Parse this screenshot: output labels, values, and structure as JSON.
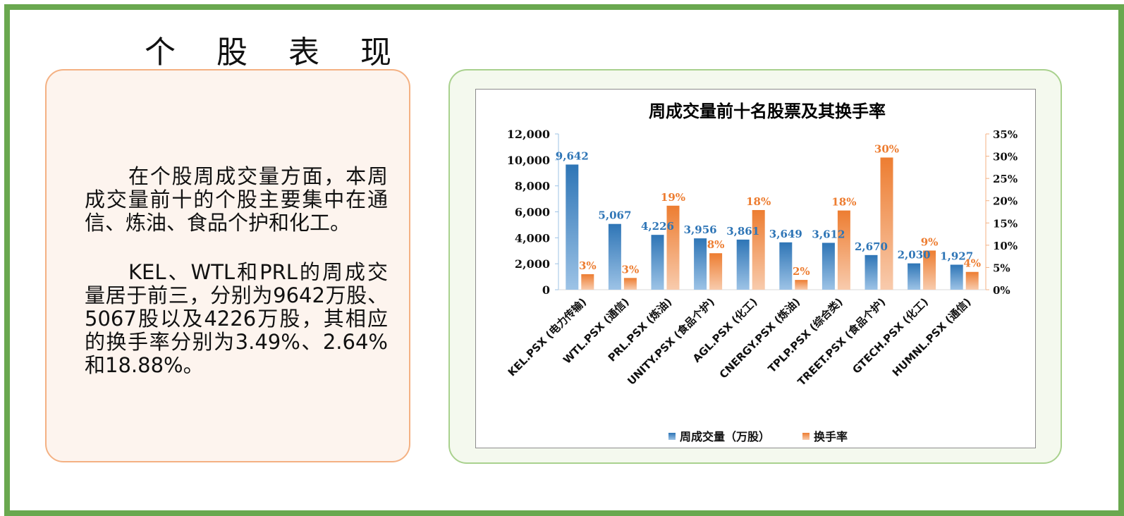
{
  "page_title": "个 股 表 现",
  "paragraph1": "在个股周成交量方面，本周成交量前十的个股主要集中在通信、炼油、食品个护和化工。",
  "paragraph2": "KEL、WTL和PRL的周成交量居于前三，分别为9642万股、5067股以及4226万股，其相应的换手率分别为3.49%、2.64%和18.88%。",
  "colors": {
    "frame": "#6aa84f",
    "volume_bar": "#2e75b6",
    "turnover_bar": "#ed7d31",
    "chart_title": "#1f3864"
  },
  "chart_data": {
    "type": "bar",
    "title": "周成交量前十名股票及其换手率",
    "categories": [
      "KEL.PSX (电力传输)",
      "WTL.PSX (通信)",
      "PRL.PSX (炼油)",
      "UNITY.PSX (食品个护)",
      "AGL.PSX (化工)",
      "CNERGY.PSX (炼油)",
      "TPLP.PSX (综合类)",
      "TREET.PSX (食品个护)",
      "GTECH.PSX (化工)",
      "HUMNL.PSX (通信)"
    ],
    "series": [
      {
        "name": "周成交量（万股）",
        "axis": "left",
        "values": [
          9642,
          5067,
          4226,
          3956,
          3861,
          3649,
          3612,
          2670,
          2030,
          1927
        ],
        "labels": [
          "9,642",
          "5,067",
          "4,226",
          "3,956",
          "3,861",
          "3,649",
          "3,612",
          "2,670",
          "2,030",
          "1,927"
        ]
      },
      {
        "name": "换手率",
        "axis": "right",
        "values": [
          3.49,
          2.64,
          18.88,
          8.2,
          17.9,
          2.2,
          17.8,
          29.7,
          8.8,
          4.0
        ],
        "labels": [
          "3%",
          "3%",
          "19%",
          "8%",
          "18%",
          "2%",
          "18%",
          "30%",
          "9%",
          "4%"
        ]
      }
    ],
    "y_left": {
      "lim": [
        0,
        12000
      ],
      "ticks": [
        "0",
        "2,000",
        "4,000",
        "6,000",
        "8,000",
        "10,000",
        "12,000"
      ]
    },
    "y_right": {
      "lim": [
        0,
        35
      ],
      "ticks": [
        "0%",
        "5%",
        "10%",
        "15%",
        "20%",
        "25%",
        "30%",
        "35%"
      ]
    },
    "grid": false,
    "legend": "bottom"
  }
}
